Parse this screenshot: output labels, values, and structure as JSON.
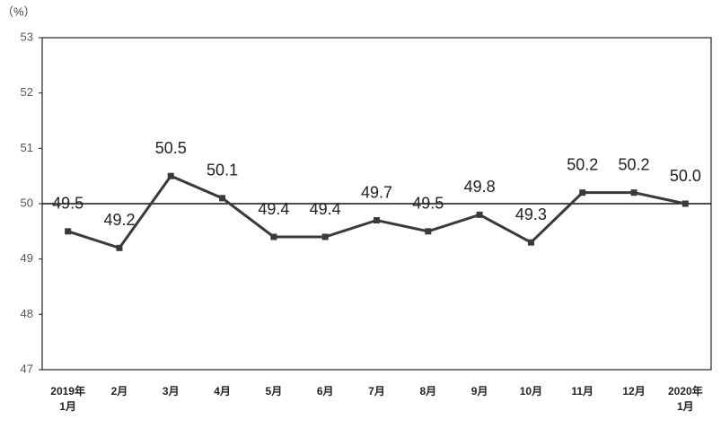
{
  "chart_data": {
    "type": "line",
    "y_unit_label": "（%）",
    "categories": [
      "2019年\n1月",
      "2月",
      "3月",
      "4月",
      "5月",
      "6月",
      "7月",
      "8月",
      "9月",
      "10月",
      "11月",
      "12月",
      "2020年\n1月"
    ],
    "series": [
      {
        "name": null,
        "color": "#3a3a3a",
        "values": [
          49.5,
          49.2,
          50.5,
          50.1,
          49.4,
          49.4,
          49.7,
          49.5,
          49.8,
          49.3,
          50.2,
          50.2,
          50.0
        ],
        "value_labels": [
          "49.5",
          "49.2",
          "50.5",
          "50.1",
          "49.4",
          "49.4",
          "49.7",
          "49.5",
          "49.8",
          "49.3",
          "50.2",
          "50.2",
          "50.0"
        ]
      }
    ],
    "ylim": [
      47,
      53
    ],
    "yticks": [
      47,
      48,
      49,
      50,
      51,
      52,
      53
    ],
    "reference_line": 50,
    "grid": false
  }
}
